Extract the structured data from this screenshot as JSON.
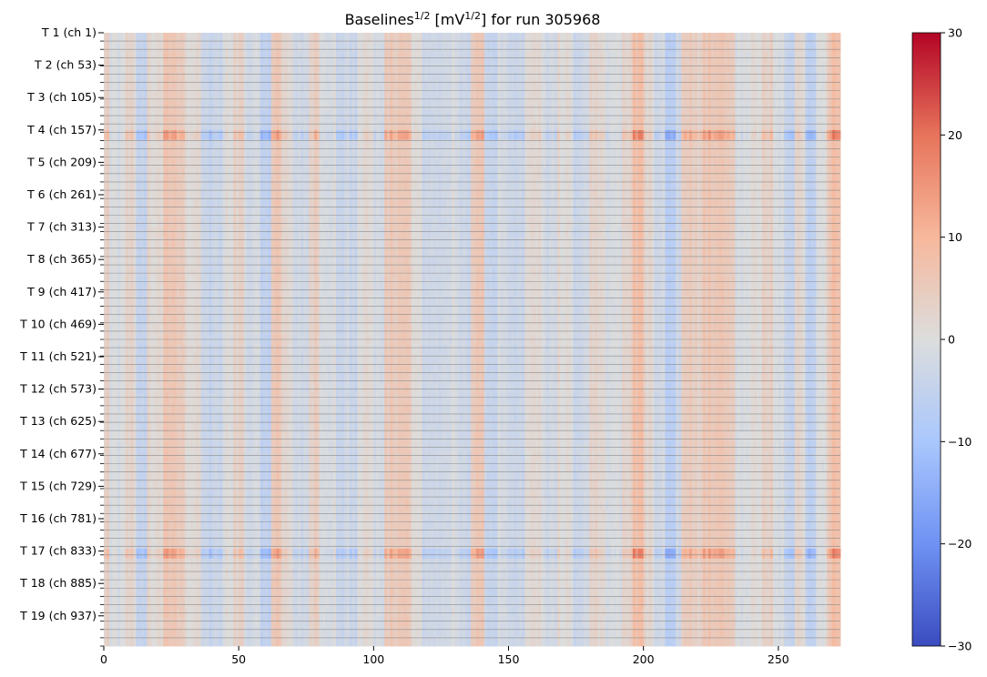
{
  "chart_data": [
    {
      "type": "heatmap",
      "title": {
        "base": "Baselines",
        "base_exp": "1/2",
        "unit_open": " [mV",
        "unit_exp": "1/2",
        "unit_close": "] for run 305968"
      },
      "xlabel": "",
      "ylabel": "",
      "x_ticks": [
        0,
        50,
        100,
        150,
        200,
        250
      ],
      "xlim": [
        0,
        273
      ],
      "n_rows": 189,
      "rows_per_group": 10,
      "y_tick_labels": [
        "T 1 (ch 1)",
        "T 2 (ch 53)",
        "T 3 (ch 105)",
        "T 4 (ch 157)",
        "T 5 (ch 209)",
        "T 6 (ch 261)",
        "T 7 (ch 313)",
        "T 8 (ch 365)",
        "T 9 (ch 417)",
        "T 10 (ch 469)",
        "T 11 (ch 521)",
        "T 12 (ch 573)",
        "T 13 (ch 625)",
        "T 14 (ch 677)",
        "T 15 (ch 729)",
        "T 16 (ch 781)",
        "T 17 (ch 833)",
        "T 18 (ch 885)",
        "T 19 (ch 937)"
      ],
      "colormap": "coolwarm",
      "colorbar": {
        "vmin": -30,
        "vmax": 30,
        "ticks": [
          30,
          20,
          10,
          0,
          -10,
          -20,
          -30
        ],
        "tick_labels": [
          "30",
          "20",
          "10",
          "0",
          "−10",
          "−20",
          "−30"
        ]
      },
      "colormap_stops": [
        "#3b4cc0",
        "#6f92f3",
        "#aac7fd",
        "#dcdddd",
        "#f7b89c",
        "#e7745b",
        "#b40426"
      ],
      "column_profile": [
        {
          "from": 0,
          "to": 2,
          "value": 4
        },
        {
          "from": 2,
          "to": 8,
          "value": -1
        },
        {
          "from": 8,
          "to": 12,
          "value": 2
        },
        {
          "from": 12,
          "to": 16,
          "value": -4
        },
        {
          "from": 16,
          "to": 22,
          "value": 2
        },
        {
          "from": 22,
          "to": 24,
          "value": 6
        },
        {
          "from": 24,
          "to": 30,
          "value": 5
        },
        {
          "from": 30,
          "to": 36,
          "value": 1
        },
        {
          "from": 36,
          "to": 44,
          "value": -4
        },
        {
          "from": 44,
          "to": 48,
          "value": 0
        },
        {
          "from": 48,
          "to": 52,
          "value": 3
        },
        {
          "from": 52,
          "to": 58,
          "value": -2
        },
        {
          "from": 58,
          "to": 62,
          "value": -6
        },
        {
          "from": 62,
          "to": 66,
          "value": 6
        },
        {
          "from": 66,
          "to": 70,
          "value": 2
        },
        {
          "from": 70,
          "to": 76,
          "value": -2
        },
        {
          "from": 76,
          "to": 80,
          "value": 4
        },
        {
          "from": 80,
          "to": 86,
          "value": 0
        },
        {
          "from": 86,
          "to": 94,
          "value": -3
        },
        {
          "from": 94,
          "to": 100,
          "value": 1
        },
        {
          "from": 100,
          "to": 104,
          "value": -2
        },
        {
          "from": 104,
          "to": 114,
          "value": 5
        },
        {
          "from": 114,
          "to": 118,
          "value": 1
        },
        {
          "from": 118,
          "to": 126,
          "value": -3
        },
        {
          "from": 126,
          "to": 132,
          "value": -1
        },
        {
          "from": 132,
          "to": 136,
          "value": -3
        },
        {
          "from": 136,
          "to": 141,
          "value": 6
        },
        {
          "from": 141,
          "to": 146,
          "value": -4
        },
        {
          "from": 146,
          "to": 150,
          "value": -1
        },
        {
          "from": 150,
          "to": 156,
          "value": -4
        },
        {
          "from": 156,
          "to": 162,
          "value": 2
        },
        {
          "from": 162,
          "to": 168,
          "value": -2
        },
        {
          "from": 168,
          "to": 174,
          "value": 1
        },
        {
          "from": 174,
          "to": 180,
          "value": -3
        },
        {
          "from": 180,
          "to": 186,
          "value": 2
        },
        {
          "from": 186,
          "to": 192,
          "value": -1
        },
        {
          "from": 192,
          "to": 196,
          "value": 3
        },
        {
          "from": 196,
          "to": 200,
          "value": 8
        },
        {
          "from": 200,
          "to": 204,
          "value": 2
        },
        {
          "from": 204,
          "to": 208,
          "value": -2
        },
        {
          "from": 208,
          "to": 212,
          "value": -6
        },
        {
          "from": 212,
          "to": 214,
          "value": -3
        },
        {
          "from": 214,
          "to": 218,
          "value": 5
        },
        {
          "from": 218,
          "to": 222,
          "value": 3
        },
        {
          "from": 222,
          "to": 234,
          "value": 6
        },
        {
          "from": 234,
          "to": 240,
          "value": -1
        },
        {
          "from": 240,
          "to": 244,
          "value": 1
        },
        {
          "from": 244,
          "to": 248,
          "value": 4
        },
        {
          "from": 248,
          "to": 252,
          "value": -1
        },
        {
          "from": 252,
          "to": 256,
          "value": -4
        },
        {
          "from": 256,
          "to": 260,
          "value": 2
        },
        {
          "from": 260,
          "to": 264,
          "value": -5
        },
        {
          "from": 264,
          "to": 268,
          "value": 0
        },
        {
          "from": 268,
          "to": 270,
          "value": 5
        },
        {
          "from": 270,
          "to": 273,
          "value": 8
        }
      ]
    }
  ]
}
